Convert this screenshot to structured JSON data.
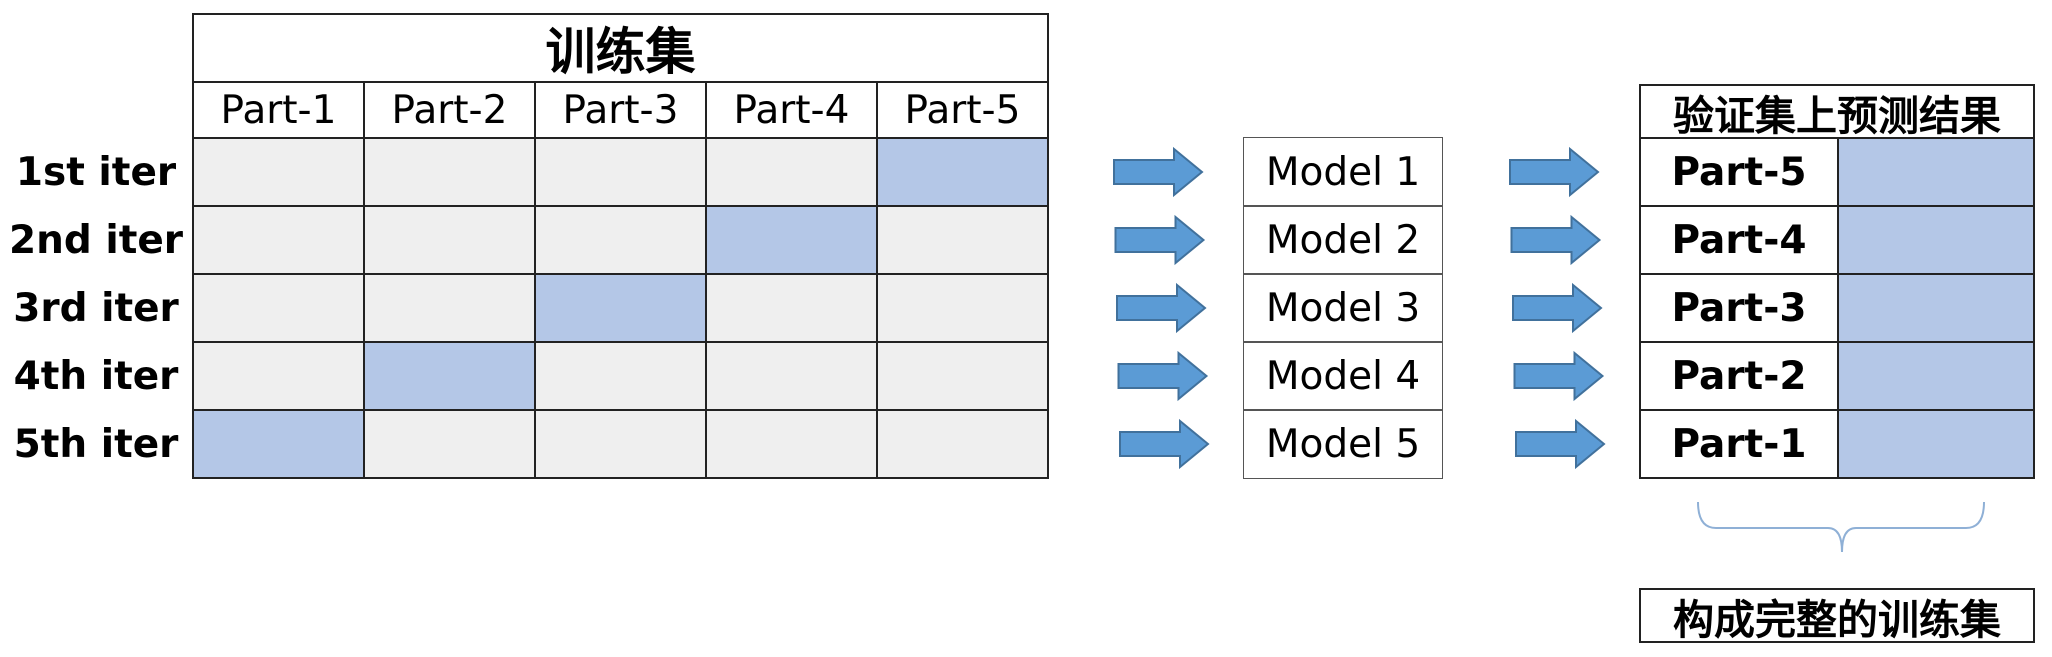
{
  "training_set": {
    "title": "训练集",
    "columns": [
      "Part-1",
      "Part-2",
      "Part-3",
      "Part-4",
      "Part-5"
    ],
    "rows": [
      {
        "label": "1st iter",
        "validation_col": 5
      },
      {
        "label": "2nd iter",
        "validation_col": 4
      },
      {
        "label": "3rd iter",
        "validation_col": 3
      },
      {
        "label": "4th iter",
        "validation_col": 2
      },
      {
        "label": "5th iter",
        "validation_col": 1
      }
    ]
  },
  "models": [
    "Model 1",
    "Model 2",
    "Model 3",
    "Model 4",
    "Model 5"
  ],
  "results": {
    "title": "验证集上预测结果",
    "parts": [
      "Part-5",
      "Part-4",
      "Part-3",
      "Part-2",
      "Part-1"
    ]
  },
  "bottom_label": "构成完整的训练集",
  "colors": {
    "train_cell": "#efefef",
    "validation_cell": "#b4c7e7",
    "arrow": "#5b9bd5",
    "arrow_stroke": "#41719c",
    "brace": "#8fb0d6"
  },
  "icons": {
    "arrow": "right-arrow-icon",
    "brace": "curly-brace-icon"
  }
}
